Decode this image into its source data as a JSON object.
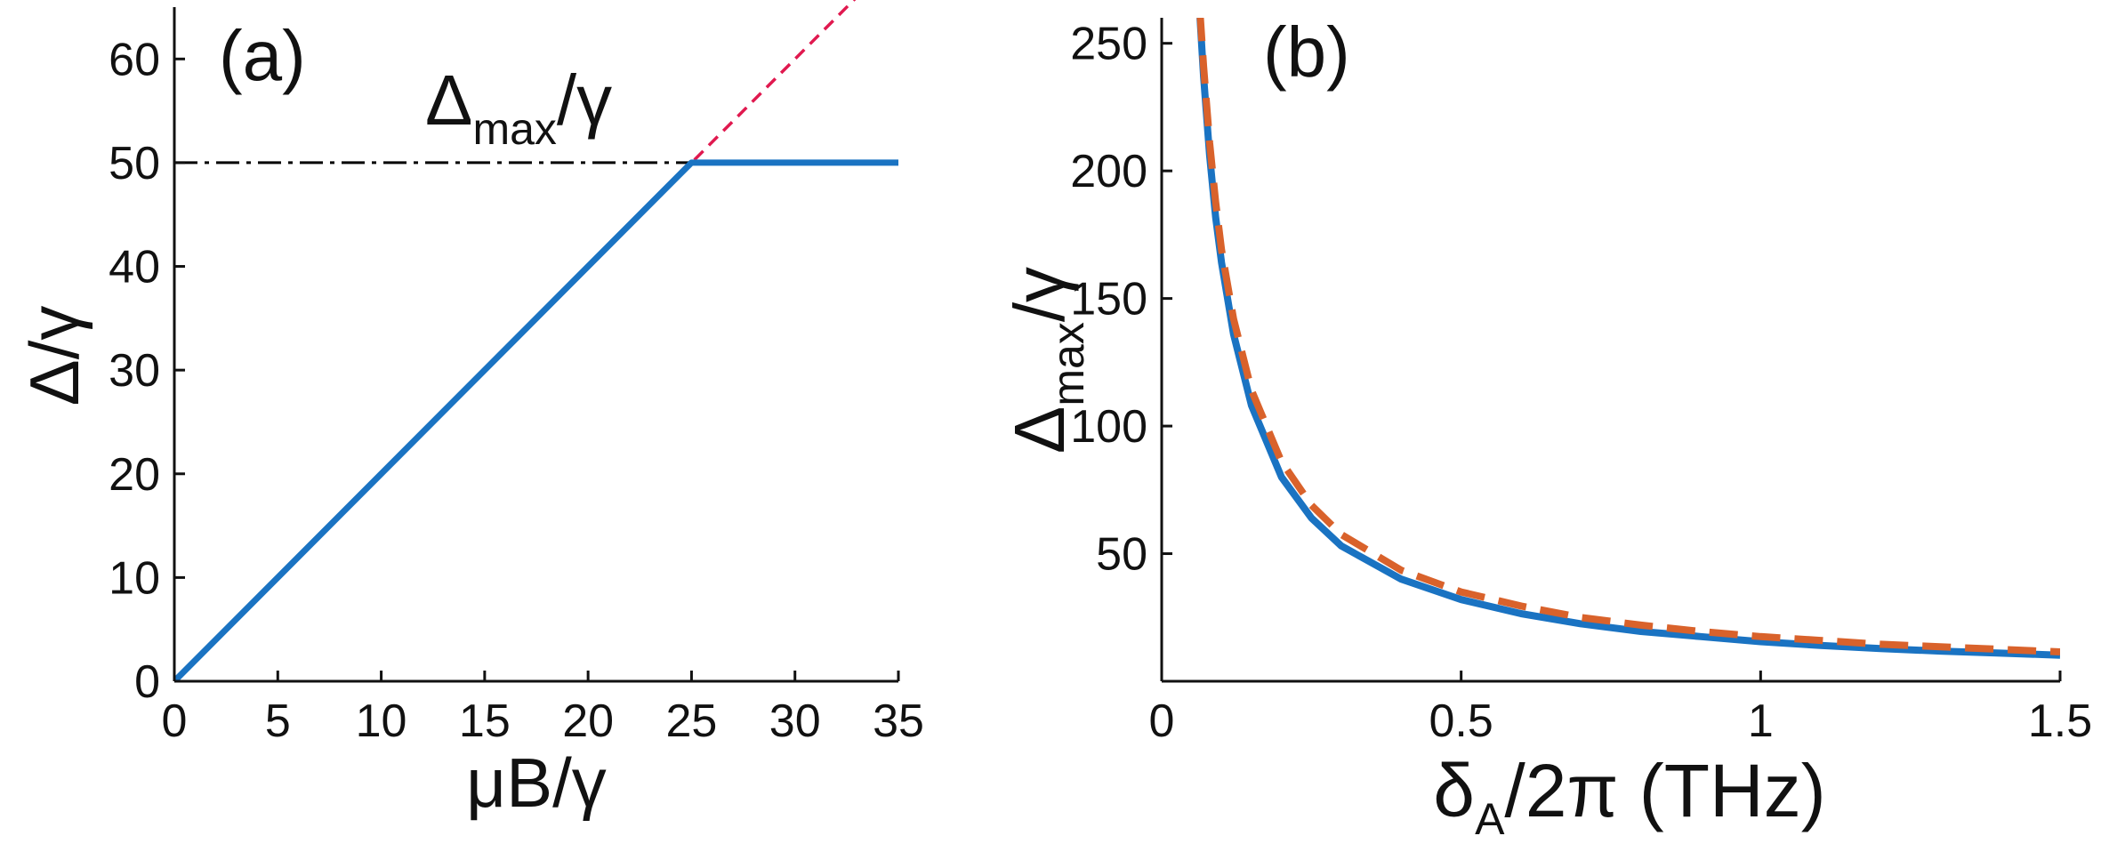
{
  "chart_data": [
    {
      "type": "line",
      "panel_label": "(a)",
      "xlabel": "μB/γ",
      "ylabel": "Δ/γ",
      "xlim": [
        0,
        35
      ],
      "ylim": [
        0,
        65
      ],
      "xticks": [
        "0",
        "5",
        "10",
        "15",
        "20",
        "25",
        "30",
        "35"
      ],
      "yticks": [
        "0",
        "10",
        "20",
        "30",
        "40",
        "50",
        "60"
      ],
      "annotation": {
        "base": "Δ",
        "sub": "max",
        "tail": "/γ",
        "at": [
          25,
          57
        ]
      },
      "reference_line": {
        "y": 50,
        "x_range": [
          0,
          25
        ],
        "style": "dash-dot",
        "color": "#000000"
      },
      "series": [
        {
          "x": [
            0,
            25,
            35
          ],
          "y": [
            0,
            50,
            50
          ],
          "color": "#1a73c2",
          "style": "solid"
        },
        {
          "x": [
            0,
            36
          ],
          "y": [
            0,
            72
          ],
          "color": "#e0194f",
          "style": "dashed"
        }
      ]
    },
    {
      "type": "line",
      "panel_label": "(b)",
      "xlabel": {
        "base": "δ",
        "sub": "A",
        "tail": "/2π (THz)"
      },
      "ylabel": {
        "base": "Δ",
        "sub": "max",
        "tail": "/γ"
      },
      "xlim": [
        0,
        1.5
      ],
      "ylim": [
        0,
        260
      ],
      "xticks": [
        "0",
        "0.5",
        "1",
        "1.5"
      ],
      "yticks": [
        "50",
        "100",
        "150",
        "200",
        "250"
      ],
      "series": [
        {
          "x": [
            0.064,
            0.07,
            0.08,
            0.09,
            0.1,
            0.12,
            0.15,
            0.2,
            0.25,
            0.3,
            0.4,
            0.5,
            0.6,
            0.7,
            0.8,
            0.9,
            1.0,
            1.1,
            1.2,
            1.3,
            1.4,
            1.5
          ],
          "y": [
            260,
            237,
            206,
            182,
            164,
            136,
            108,
            80,
            64,
            53,
            40,
            32,
            26.5,
            22.5,
            19.5,
            17.5,
            15.5,
            14,
            12.8,
            11.8,
            11,
            10.2
          ],
          "color": "#1a73c2",
          "style": "solid"
        },
        {
          "x": [
            0.064,
            0.07,
            0.08,
            0.09,
            0.1,
            0.12,
            0.15,
            0.2,
            0.25,
            0.3,
            0.4,
            0.5,
            0.6,
            0.7,
            0.8,
            0.9,
            1.0,
            1.1,
            1.2,
            1.3,
            1.4,
            1.5
          ],
          "y": [
            262,
            241,
            211,
            188,
            169,
            142,
            114,
            86,
            69,
            57.5,
            43.5,
            35,
            29.5,
            25,
            22,
            19.5,
            17.5,
            16,
            14.5,
            13.5,
            12.5,
            11.5
          ],
          "color": "#d9622b",
          "style": "dashed"
        }
      ]
    }
  ]
}
